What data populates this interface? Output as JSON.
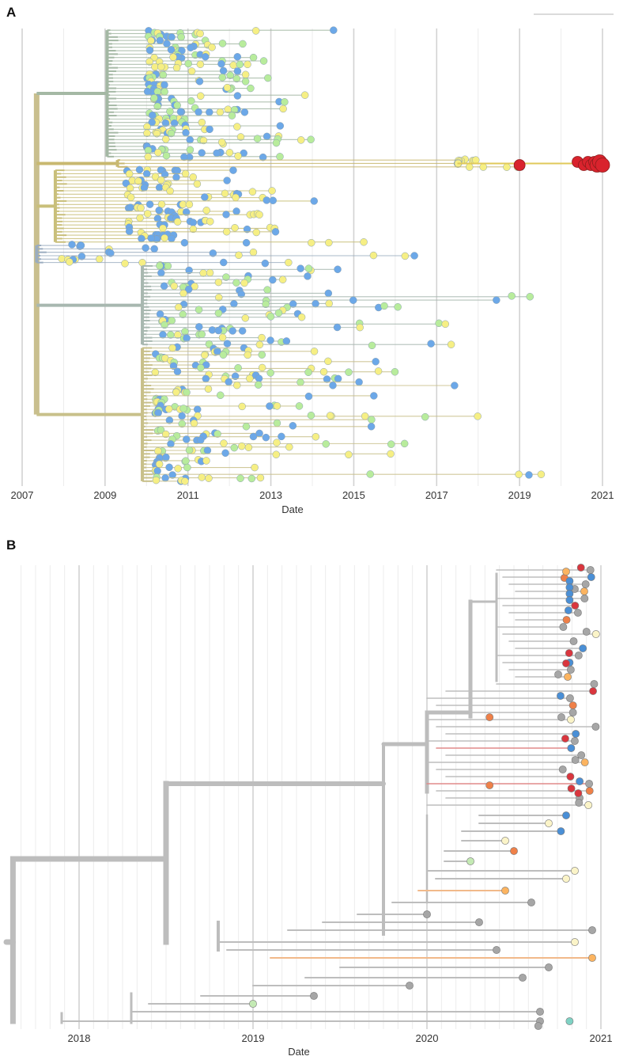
{
  "chart_data": [
    {
      "panel": "A",
      "type": "phylogenetic-tree",
      "xlabel": "Date",
      "x_ticks": [
        "2007",
        "2009",
        "2011",
        "2013",
        "2015",
        "2017",
        "2019",
        "2021"
      ],
      "x_range": [
        2007.0,
        2021.4
      ],
      "root_date": 2007.35,
      "tip_colors": {
        "blue": "#6ca8e8",
        "green": "#b8ec9c",
        "yellow": "#f6ef84",
        "red": "#d9232d"
      },
      "clades": [
        {
          "name": "upper-blue-green",
          "origin": 2009.05,
          "tip_start": 2010.0,
          "tip_end": 2015.6,
          "rows": 38,
          "mix": [
            "blue",
            "green",
            "yellow"
          ],
          "branch_color": "#a4b8a4"
        },
        {
          "name": "red-outbreak-lineage",
          "origin": 2009.3,
          "tip_start": 2017.5,
          "tip_end": 2021.0,
          "rows": 3,
          "mix": [
            "yellow"
          ],
          "branch_color": "#c8b870"
        },
        {
          "name": "middle-yellow",
          "origin": 2007.8,
          "tip_start": 2009.5,
          "tip_end": 2017.0,
          "rows": 22,
          "mix": [
            "yellow",
            "blue"
          ],
          "branch_color": "#c9bf7a"
        },
        {
          "name": "middle-blue",
          "origin": 2007.35,
          "tip_start": 2007.9,
          "tip_end": 2020.0,
          "rows": 6,
          "mix": [
            "yellow",
            "blue"
          ],
          "branch_color": "#9aacbf"
        },
        {
          "name": "lower-blue-green",
          "origin": 2009.9,
          "tip_start": 2010.3,
          "tip_end": 2019.8,
          "rows": 24,
          "mix": [
            "blue",
            "green",
            "yellow"
          ],
          "branch_color": "#a8b8b0"
        },
        {
          "name": "lower-yellow-blue",
          "origin": 2009.9,
          "tip_start": 2010.2,
          "tip_end": 2021.0,
          "rows": 40,
          "mix": [
            "blue",
            "yellow",
            "green"
          ],
          "branch_color": "#c8c08a"
        }
      ],
      "highlight_tips": [
        {
          "date": 2019.0,
          "color": "red"
        },
        {
          "date": 2020.4,
          "color": "red"
        },
        {
          "date": 2020.55,
          "color": "red"
        },
        {
          "date": 2020.65,
          "color": "red"
        },
        {
          "date": 2020.72,
          "color": "red"
        },
        {
          "date": 2020.8,
          "color": "red"
        },
        {
          "date": 2020.87,
          "color": "red"
        },
        {
          "date": 2020.93,
          "color": "red"
        },
        {
          "date": 2021.0,
          "color": "red"
        }
      ]
    },
    {
      "panel": "B",
      "type": "phylogenetic-tree",
      "xlabel": "Date",
      "x_ticks": [
        "2018",
        "2019",
        "2020",
        "2021"
      ],
      "x_range": [
        2017.6,
        2021.05
      ],
      "root_date": 2017.62,
      "tip_colors": {
        "grey": "#a6a6a6",
        "blue": "#4a8fd6",
        "red": "#d9363e",
        "orange": "#ef8048",
        "light-orange": "#fcb460",
        "cream": "#fbf4c8",
        "light-green": "#c4eab4",
        "teal": "#7fd2c4"
      },
      "branch_color": "#bdbdbd"
    }
  ]
}
